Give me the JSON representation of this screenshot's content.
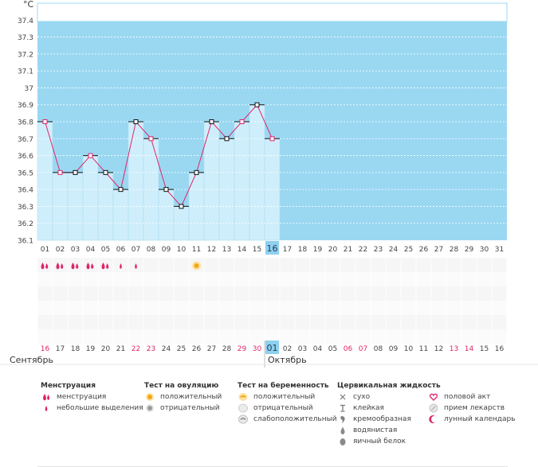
{
  "chart_data": {
    "type": "line",
    "unit_label": "°C",
    "y_ticks": [
      "37.4",
      "37.3",
      "37.2",
      "37.1",
      "37",
      "36.9",
      "36.8",
      "36.7",
      "36.6",
      "36.5",
      "36.4",
      "36.3",
      "36.2",
      "36.1"
    ],
    "ylim": [
      36.1,
      37.5
    ],
    "day_labels": [
      "01",
      "02",
      "03",
      "04",
      "05",
      "06",
      "07",
      "08",
      "09",
      "10",
      "11",
      "12",
      "13",
      "14",
      "15",
      "16",
      "17",
      "18",
      "19",
      "20",
      "21",
      "22",
      "23",
      "24",
      "25",
      "26",
      "27",
      "28",
      "29",
      "30",
      "31"
    ],
    "current_day_index": 15,
    "temperatures": [
      36.8,
      36.5,
      36.5,
      36.6,
      36.5,
      36.4,
      36.8,
      36.7,
      36.4,
      36.3,
      36.5,
      36.8,
      36.7,
      36.8,
      36.9,
      36.7
    ],
    "highlighted_points": [
      0,
      1,
      3,
      7,
      13,
      15
    ],
    "menstruation": [
      1,
      1,
      1,
      1,
      1,
      2,
      2
    ],
    "ovulation_test": {
      "day_index": 10,
      "result": "positive"
    },
    "date_numbers": [
      "16",
      "17",
      "18",
      "19",
      "20",
      "21",
      "22",
      "23",
      "24",
      "25",
      "26",
      "27",
      "28",
      "29",
      "30",
      "01",
      "02",
      "03",
      "04",
      "05",
      "06",
      "07",
      "08",
      "09",
      "10",
      "11",
      "12",
      "13",
      "14",
      "15",
      "16"
    ],
    "weekend_indices": [
      0,
      6,
      7,
      13,
      14,
      20,
      21,
      27,
      28
    ],
    "month_left": "Сентябрь",
    "month_right": "Октябрь"
  },
  "legend": {
    "menstruation": {
      "title": "Менструация",
      "items": [
        "менструация",
        "небольшие выделения"
      ]
    },
    "ovulation": {
      "title": "Тест на овуляцию",
      "items": [
        "положительный",
        "отрицательный"
      ]
    },
    "pregnancy": {
      "title": "Тест на беременность",
      "items": [
        "положительный",
        "отрицательный",
        "слабоположительный"
      ]
    },
    "cervical": {
      "title": "Цервикальная жидкость",
      "items": [
        "сухо",
        "клейкая",
        "кремообразная",
        "водянистая",
        "яичный белок"
      ]
    },
    "other": {
      "items": [
        "половой акт",
        "прием лекарств",
        "лунный календарь"
      ]
    }
  },
  "colors": {
    "plot_bg": "#9ad8f2",
    "bar_fill": "#cfeefb",
    "line": "#e0246a",
    "accent_pink": "#e0246a",
    "current_day": "#8fd0ef",
    "grid": "#ffffff"
  }
}
